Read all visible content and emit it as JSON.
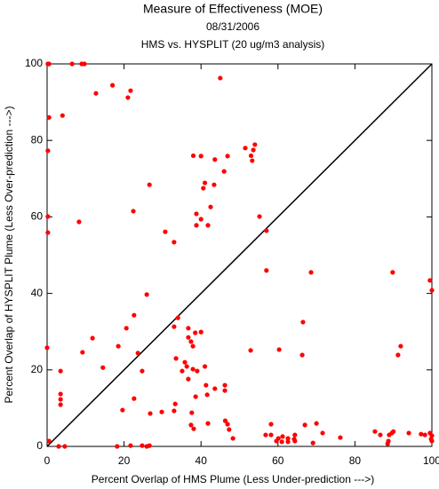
{
  "chart_data": {
    "type": "scatter",
    "title": "Measure of Effectiveness (MOE)",
    "subtitle": "08/31/2006",
    "subtitle2": "HMS vs. HYSPLIT  (20 ug/m3 analysis)",
    "x_label": "Percent Overlap of HMS Plume (Less Under-prediction --->)",
    "y_label": "Percent Overlap of HYSPLIT Plume (Less Over-prediction --->)",
    "color": "#ff0000",
    "diagonal": true,
    "xlim": [
      0,
      100
    ],
    "ylim": [
      0,
      100
    ],
    "xticks": [
      0,
      20,
      40,
      60,
      80,
      100
    ],
    "yticks": [
      0,
      20,
      40,
      60,
      80,
      100
    ],
    "x": [
      0.2,
      0.5,
      6.5,
      9.0,
      9.7,
      0.5,
      4.0,
      12.7,
      17.0,
      21.0,
      21.7,
      45.0,
      0.2,
      38.0,
      40.0,
      43.6,
      46.9,
      51.5,
      53.0,
      53.6,
      54.0,
      53.3,
      26.6,
      40.6,
      41.0,
      43.4,
      46.0,
      42.5,
      0.2,
      8.3,
      22.4,
      30.7,
      33.0,
      38.8,
      40.0,
      41.8,
      38.8,
      55.2,
      57.0,
      0.2,
      57.0,
      68.6,
      89.8,
      99.5,
      100.0,
      25.9,
      0.0,
      11.8,
      18.5,
      20.6,
      22.6,
      23.6,
      34.0,
      36.7,
      38.5,
      36.7,
      37.4,
      40.0,
      37.9,
      33.0,
      9.2,
      33.5,
      35.1,
      35.8,
      36.3,
      36.7,
      37.9,
      39.0,
      41.0,
      52.9,
      60.3,
      66.3,
      66.5,
      91.9,
      91.2,
      3.5,
      14.5,
      24.7,
      3.5,
      3.5,
      3.5,
      22.6,
      41.3,
      41.6,
      43.6,
      46.2,
      46.2,
      38.6,
      33.3,
      19.6,
      26.8,
      29.8,
      33.0,
      37.6,
      37.4,
      38.1,
      41.8,
      46.3,
      46.9,
      47.3,
      48.3,
      56.8,
      58.2,
      58.2,
      60.1,
      61.2,
      59.6,
      61.0,
      62.6,
      64.2,
      64.4,
      62.6,
      64.4,
      67.0,
      69.1,
      70.0,
      71.6,
      76.2,
      85.2,
      86.6,
      88.9,
      88.7,
      89.6,
      90.0,
      88.5,
      94.0,
      97.2,
      99.5,
      100.0,
      99.8,
      100.0,
      98.2,
      0.5,
      3.0,
      4.6,
      18.2,
      21.7,
      24.7,
      25.9,
      26.6
    ],
    "values": [
      100.0,
      100.0,
      100.0,
      100.0,
      100.0,
      86.0,
      86.5,
      92.3,
      94.4,
      91.2,
      93.0,
      96.3,
      77.3,
      76.0,
      75.9,
      75.0,
      75.9,
      78.0,
      76.0,
      77.5,
      78.9,
      74.7,
      68.4,
      67.5,
      68.9,
      68.4,
      71.9,
      62.6,
      60.1,
      58.7,
      61.5,
      56.1,
      53.4,
      57.8,
      59.4,
      57.8,
      60.8,
      60.1,
      56.4,
      55.9,
      46.0,
      45.5,
      45.5,
      43.4,
      40.8,
      39.7,
      25.8,
      28.3,
      26.2,
      30.9,
      34.3,
      24.4,
      33.6,
      30.9,
      29.7,
      28.5,
      27.4,
      29.9,
      26.2,
      31.3,
      24.6,
      23.0,
      19.7,
      22.0,
      20.9,
      17.6,
      20.2,
      19.7,
      20.9,
      25.1,
      25.3,
      23.9,
      32.5,
      26.2,
      23.9,
      19.7,
      20.6,
      19.7,
      13.7,
      12.3,
      10.9,
      12.5,
      16.0,
      13.5,
      15.1,
      16.0,
      14.6,
      13.0,
      11.1,
      9.5,
      8.6,
      9.0,
      9.3,
      8.8,
      5.6,
      4.6,
      6.0,
      6.7,
      5.8,
      4.4,
      2.1,
      3.0,
      3.0,
      5.8,
      2.1,
      2.6,
      1.4,
      1.2,
      2.1,
      1.9,
      3.0,
      1.2,
      1.4,
      5.6,
      0.9,
      6.0,
      3.5,
      2.3,
      3.9,
      3.0,
      3.0,
      1.4,
      3.5,
      3.9,
      0.7,
      3.5,
      3.2,
      3.5,
      2.8,
      1.9,
      1.4,
      3.0,
      1.4,
      0.0,
      0.0,
      0.0,
      0.2,
      0.2,
      0.0,
      0.2
    ]
  }
}
